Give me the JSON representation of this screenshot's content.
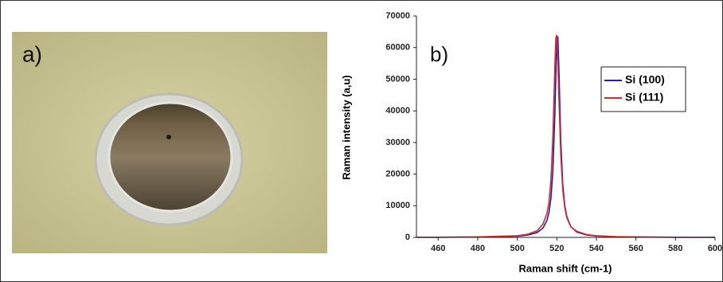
{
  "photo": {
    "label": "a)"
  },
  "chart_data": {
    "type": "line",
    "annotation": "b)",
    "x_label": "Raman shift (cm-1)",
    "y_label": "Raman intensity (a,u)",
    "x": [
      449,
      460,
      480,
      500,
      505,
      510,
      513,
      515,
      516,
      517,
      518,
      519,
      519.5,
      520,
      520.5,
      521,
      522,
      523,
      524,
      525,
      527,
      530,
      535,
      540,
      550,
      560,
      580,
      600
    ],
    "series": [
      {
        "name": "Si (100)",
        "color": "#1f1fb4",
        "values": [
          30,
          45,
          102,
          399,
          698,
          1521,
          2958,
          5388,
          7847,
          12286,
          21010,
          38855,
          51600,
          62319,
          63509,
          54156,
          30296,
          16753,
          10157,
          6698,
          3486,
          1709,
          755,
          423,
          187,
          105,
          46,
          26
        ]
      },
      {
        "name": "Si (111)",
        "color": "#d42a2a",
        "values": [
          41,
          58,
          131,
          530,
          950,
          2100,
          4200,
          7550,
          11000,
          18000,
          32000,
          54000,
          63000,
          64000,
          56000,
          45000,
          26000,
          15000,
          9500,
          6300,
          3400,
          1950,
          900,
          510,
          230,
          130,
          58,
          33
        ]
      }
    ],
    "xlim": [
      449,
      600
    ],
    "xticks": [
      460,
      480,
      500,
      520,
      540,
      560,
      580,
      600
    ],
    "ylim": [
      0,
      70000
    ],
    "yticks": [
      0,
      10000,
      20000,
      30000,
      40000,
      50000,
      60000,
      70000
    ],
    "legend": "upper-right",
    "grid": false
  }
}
